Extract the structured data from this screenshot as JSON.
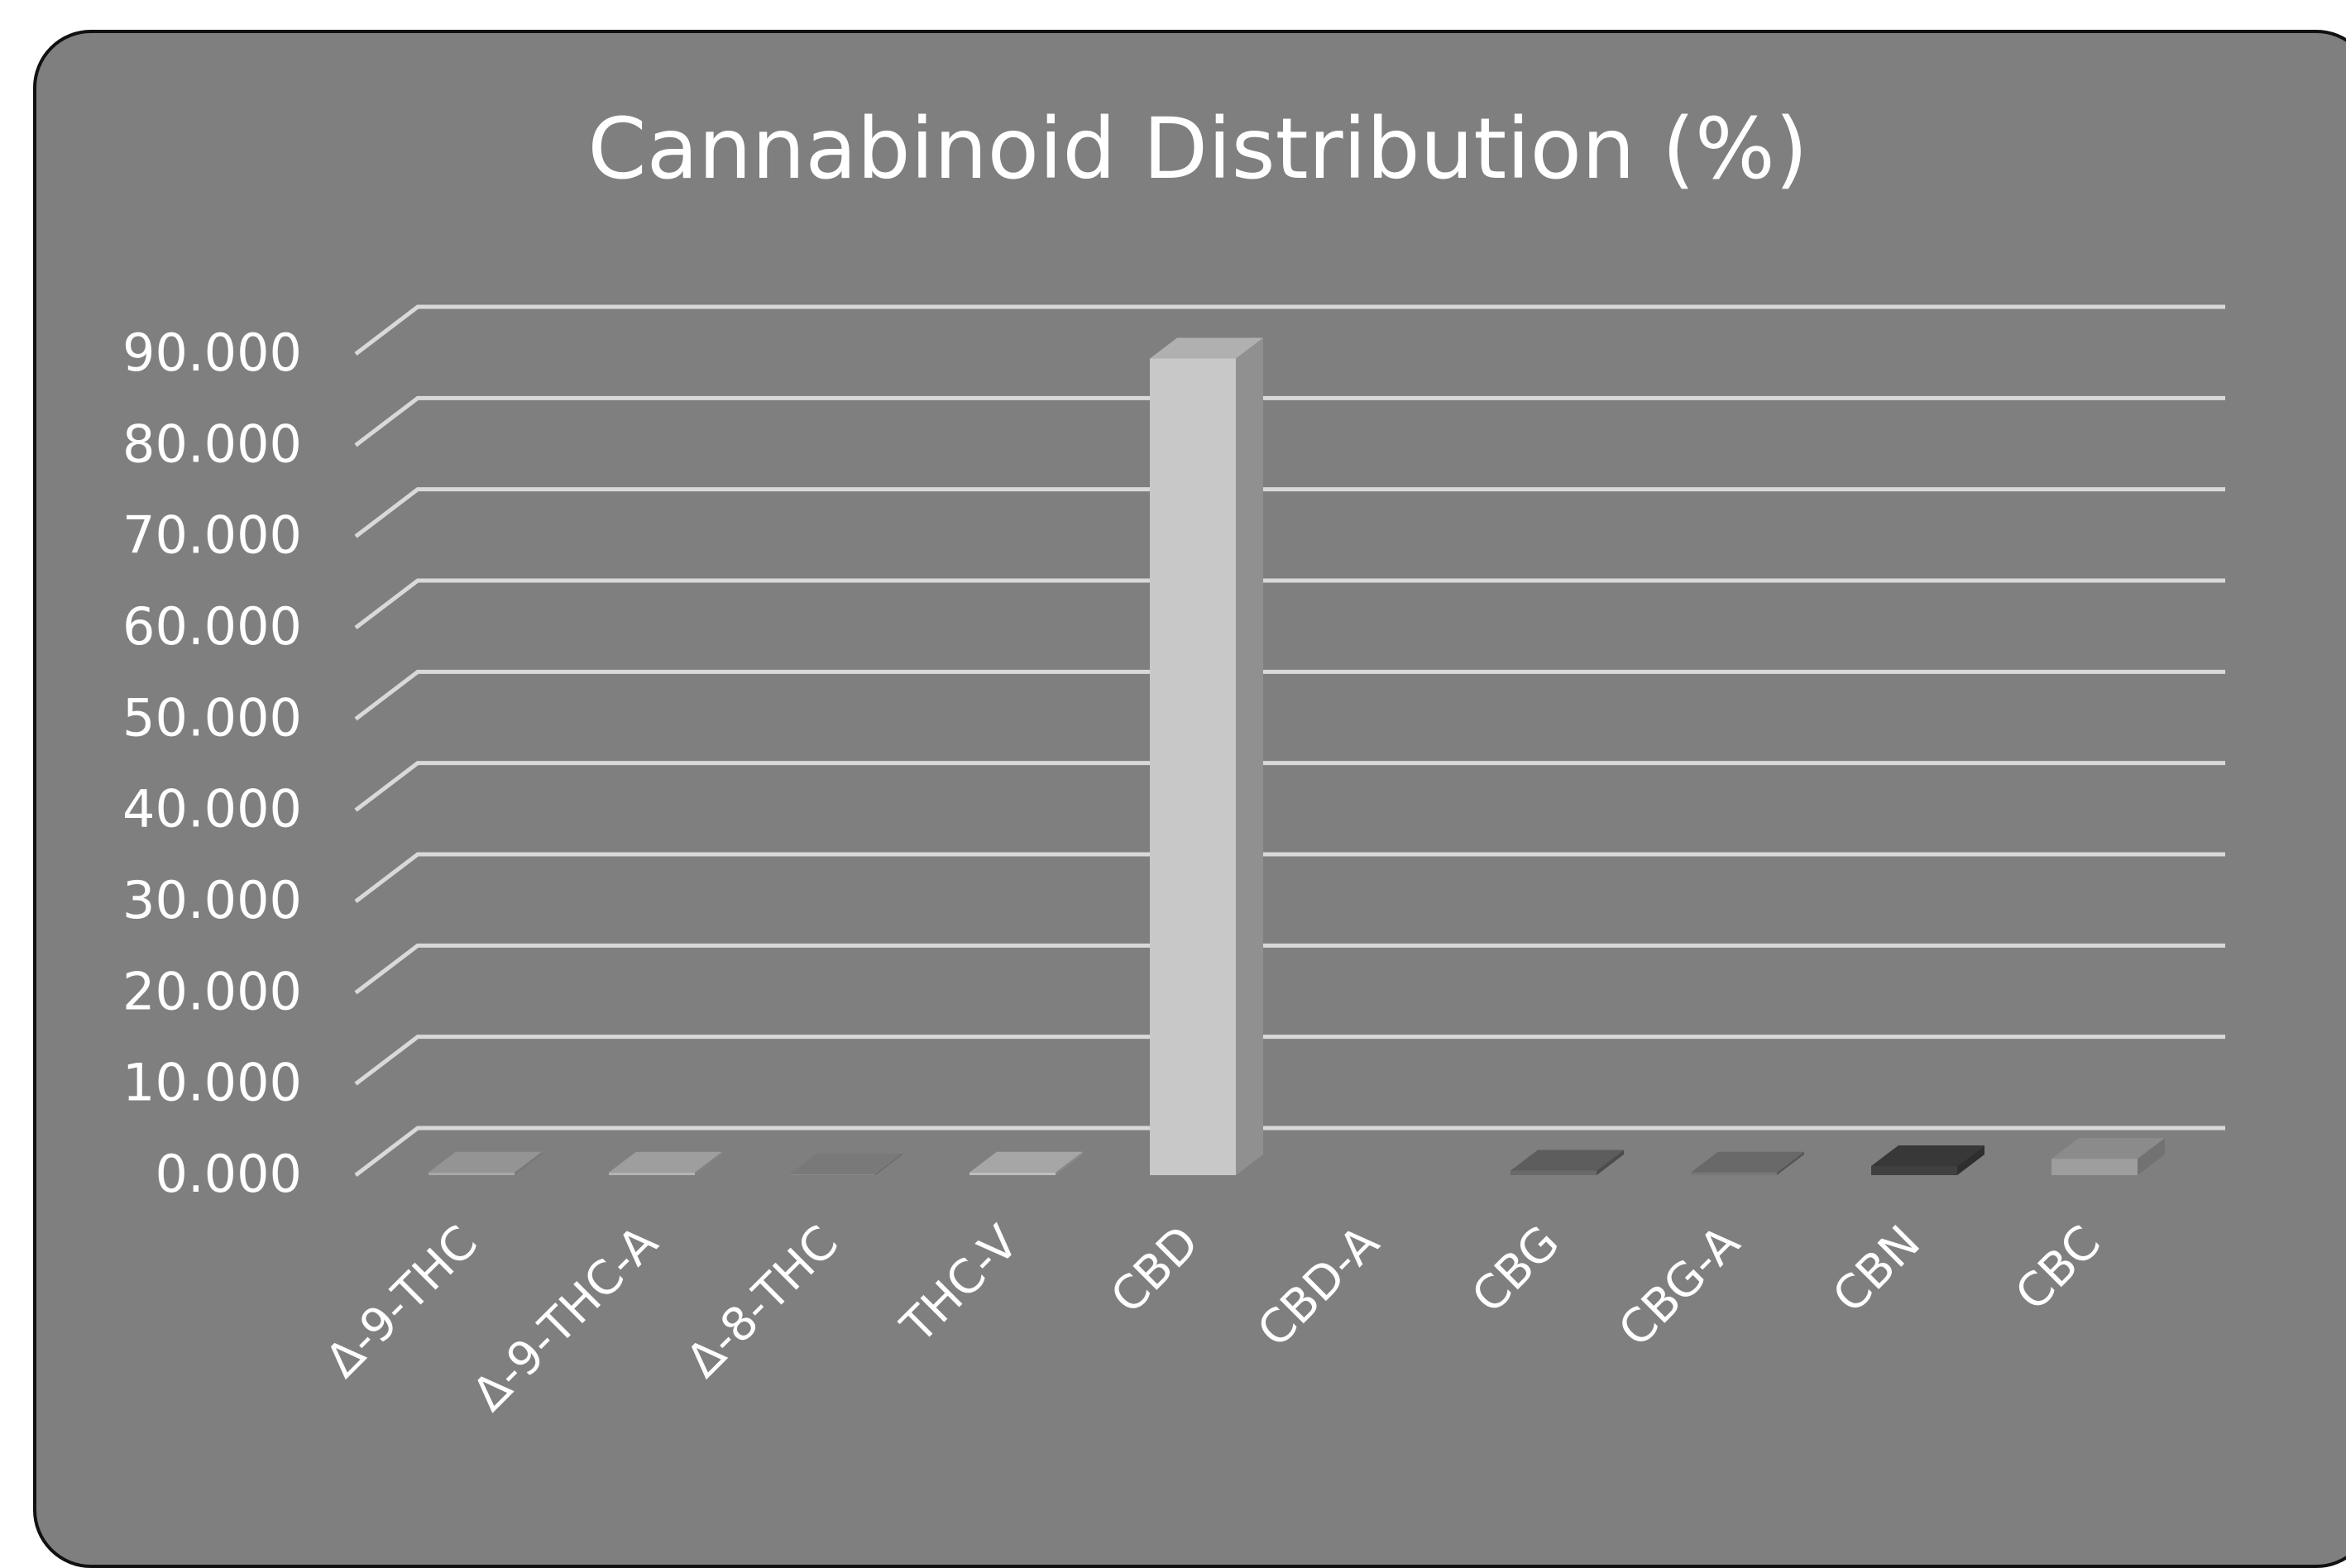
{
  "chart_data": {
    "type": "bar",
    "title": "Cannabinoid Distribution (%)",
    "xlabel": "",
    "ylabel": "",
    "ylim": [
      0,
      90
    ],
    "yticks": [
      "0.000",
      "10.000",
      "20.000",
      "30.000",
      "40.000",
      "50.000",
      "60.000",
      "70.000",
      "80.000",
      "90.000"
    ],
    "categories": [
      "Δ-9-THC",
      "Δ-9-THC-A",
      "Δ-8-THC",
      "THC-V",
      "CBD",
      "CBD-A",
      "CBG",
      "CBG-A",
      "CBN",
      "CBC"
    ],
    "values": [
      0.3,
      0.3,
      0.1,
      0.3,
      89.5,
      0,
      0.5,
      0.3,
      1.0,
      1.8
    ],
    "colors": [
      "#a8a8a8",
      "#b4b4b4",
      "#8a8a8a",
      "#bdbdbd",
      "#c8c8c8",
      "#7f7f7f",
      "#6a6a6a",
      "#777777",
      "#404040",
      "#9e9e9e"
    ],
    "grid": true,
    "legend": "none",
    "background": "#7f7f7f",
    "grid_color": "#d9d9d9"
  }
}
